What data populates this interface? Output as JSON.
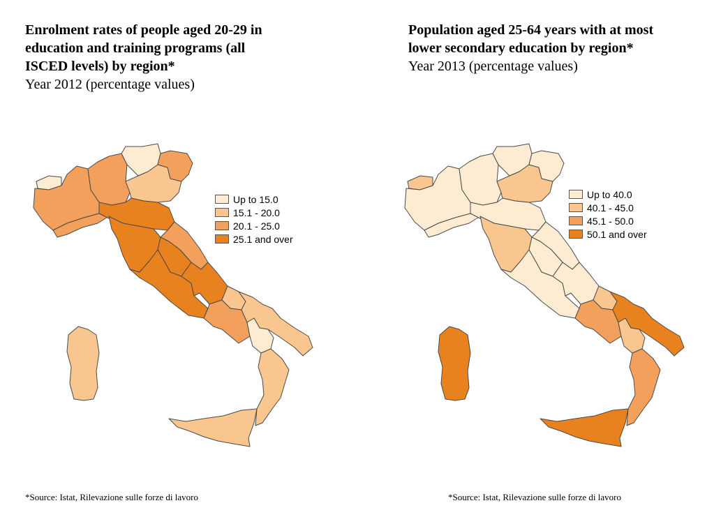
{
  "maps": [
    {
      "id": "enrolment",
      "title": "Enrolment rates of people aged 20-29 in\neducation and training programs (all\nISCED levels) by region*",
      "subtitle": "Year 2012 (percentage values)",
      "legend": [
        {
          "label": "Up to 15.0",
          "color": "#fdebd2"
        },
        {
          "label": "15.1 - 20.0",
          "color": "#f9c690"
        },
        {
          "label": "20.1 - 25.0",
          "color": "#f3a05c"
        },
        {
          "label": "25.1 and over",
          "color": "#e8821f"
        }
      ],
      "source": "*Source: Istat, Rilevazione sulle forze di lavoro",
      "region_classes": {
        "valle-d-aosta": 0,
        "piemonte": 2,
        "liguria": 2,
        "lombardia": 2,
        "trentino-alto-adige": 0,
        "veneto": 1,
        "friuli-venezia-giulia": 2,
        "emilia-romagna": 3,
        "toscana": 3,
        "umbria": 3,
        "marche": 2,
        "lazio": 3,
        "abruzzo": 3,
        "molise": 1,
        "campania": 2,
        "puglia": 1,
        "basilicata": 0,
        "calabria": 1,
        "sicilia": 1,
        "sardegna": 1
      }
    },
    {
      "id": "lower-secondary",
      "title": "Population aged 25-64 years with at most\nlower secondary education by region*",
      "subtitle": "Year 2013 (percentage values)",
      "legend": [
        {
          "label": "Up to 40.0",
          "color": "#fdebd2"
        },
        {
          "label": "40.1 - 45.0",
          "color": "#f9c690"
        },
        {
          "label": "45.1 - 50.0",
          "color": "#f3a05c"
        },
        {
          "label": "50.1 and over",
          "color": "#e8821f"
        }
      ],
      "source": "*Source: Istat, Rilevazione sulle forze di lavoro",
      "region_classes": {
        "valle-d-aosta": 1,
        "piemonte": 0,
        "liguria": 0,
        "lombardia": 0,
        "trentino-alto-adige": 0,
        "veneto": 1,
        "friuli-venezia-giulia": 0,
        "emilia-romagna": 0,
        "toscana": 1,
        "umbria": 0,
        "marche": 0,
        "lazio": 0,
        "abruzzo": 0,
        "molise": 1,
        "campania": 2,
        "puglia": 3,
        "basilicata": 1,
        "calabria": 2,
        "sicilia": 3,
        "sardegna": 3
      }
    }
  ]
}
